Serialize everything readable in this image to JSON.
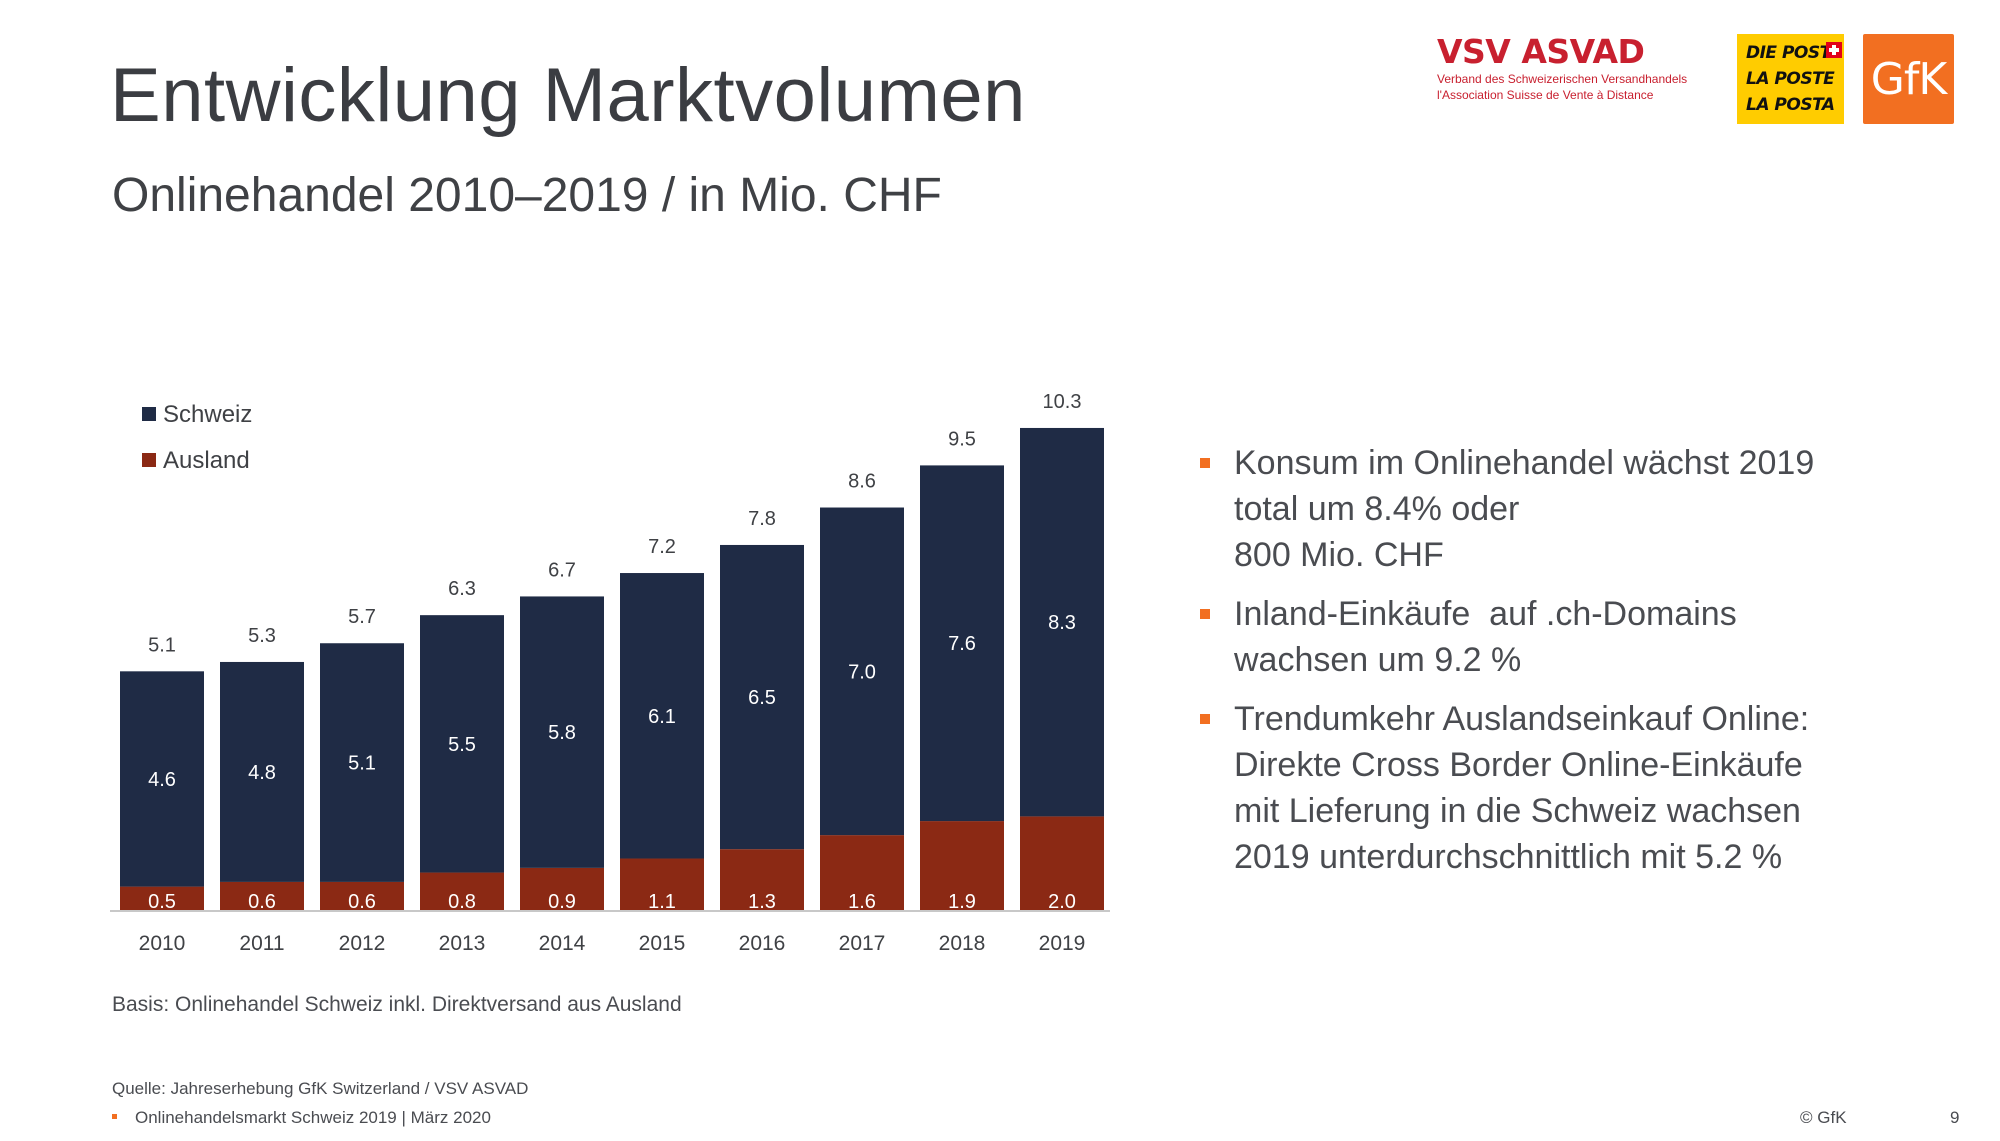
{
  "header": {
    "title": "Entwicklung Marktvolumen",
    "subtitle": "Onlinehandel 2010–2019 / in Mio. CHF"
  },
  "logos": {
    "vsv_brand": "VSV ASVAD",
    "vsv_line1": "Verband des Schweizerischen Versandhandels",
    "vsv_line2": "l'Association Suisse de Vente à Distance",
    "post_lines": [
      "DIE POST",
      "LA POSTE",
      "LA POSTA"
    ],
    "gfk": "GfK"
  },
  "chart_data": {
    "type": "bar",
    "stacked": true,
    "categories": [
      "2010",
      "2011",
      "2012",
      "2013",
      "2014",
      "2015",
      "2016",
      "2017",
      "2018",
      "2019"
    ],
    "series": [
      {
        "name": "Ausland",
        "color": "#8b2914",
        "values": [
          0.5,
          0.6,
          0.6,
          0.8,
          0.9,
          1.1,
          1.3,
          1.6,
          1.9,
          2.0
        ]
      },
      {
        "name": "Schweiz",
        "color": "#1f2b45",
        "values": [
          4.6,
          4.8,
          5.1,
          5.5,
          5.8,
          6.1,
          6.5,
          7.0,
          7.6,
          8.3
        ]
      }
    ],
    "totals": [
      5.1,
      5.3,
      5.7,
      6.3,
      6.7,
      7.2,
      7.8,
      8.6,
      9.5,
      10.3
    ],
    "legend_position": "top-left",
    "grid": false,
    "ylim": [
      0,
      10.5
    ]
  },
  "bullets": [
    {
      "lines": [
        "Konsum im Onlinehandel wächst 2019",
        "total um 8.4% oder",
        "800 Mio. CHF"
      ]
    },
    {
      "lines": [
        "Inland-Einkäufe  auf .ch-Domains",
        "wachsen um 9.2 %"
      ]
    },
    {
      "lines": [
        "Trendumkehr Auslandseinkauf Online:",
        "Direkte Cross Border Online-Einkäufe",
        "mit Lieferung in die Schweiz wachsen",
        "2019 unterdurchschnittlich mit 5.2 %"
      ]
    }
  ],
  "footer": {
    "basis": "Basis: Onlinehandel Schweiz inkl. Direktversand aus Ausland",
    "source": "Quelle: Jahreserhebung GfK Switzerland / VSV ASVAD",
    "report": "Onlinehandelsmarkt Schweiz 2019  | März 2020",
    "copyright": "© GfK",
    "page": "9"
  }
}
